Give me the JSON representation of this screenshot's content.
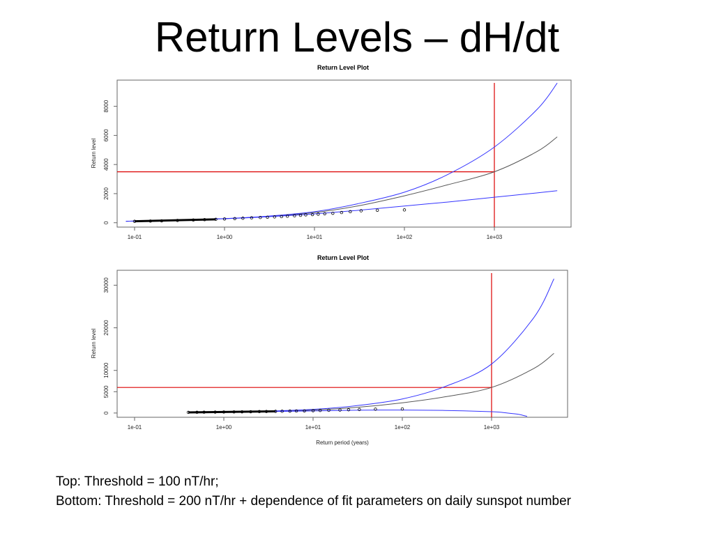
{
  "slide": {
    "title": "Return Levels – dH/dt",
    "caption_line1": "Top: Threshold = 100 nT/hr;",
    "caption_line2": "Bottom: Threshold = 200 nT/hr + dependence of fit parameters on daily sunspot number"
  },
  "colors": {
    "estimate": "#555555",
    "confidence_band": "#3333ff",
    "reference_line": "#dd0000",
    "points": "#000000"
  },
  "chart_data": [
    {
      "type": "line",
      "title": "Return Level Plot",
      "xlabel": "",
      "ylabel": "Return level",
      "x_scale": "log",
      "xlim": [
        0.06,
        8000
      ],
      "ylim": [
        -300,
        9800
      ],
      "x_ticks": [
        0.1,
        1,
        10,
        100,
        1000
      ],
      "x_tick_labels": [
        "1e-01",
        "1e+00",
        "1e+01",
        "1e+02",
        "1e+03"
      ],
      "y_ticks": [
        0,
        2000,
        4000,
        6000,
        8000
      ],
      "y_tick_labels": [
        "0",
        "2000",
        "4000",
        "6000",
        "8000"
      ],
      "reference": {
        "x": 1000,
        "y": 3500
      },
      "series": [
        {
          "role": "estimate",
          "x": [
            0.08,
            0.3,
            1,
            3,
            10,
            30,
            100,
            300,
            1000,
            3000,
            5000
          ],
          "y": [
            100,
            180,
            280,
            430,
            700,
            1150,
            1850,
            2600,
            3500,
            4900,
            5900
          ]
        },
        {
          "role": "upper",
          "x": [
            0.08,
            0.3,
            1,
            3,
            10,
            30,
            100,
            300,
            1000,
            3000,
            5000
          ],
          "y": [
            100,
            180,
            285,
            450,
            760,
            1300,
            2100,
            3300,
            5200,
            7800,
            9600
          ]
        },
        {
          "role": "lower",
          "x": [
            0.08,
            0.3,
            1,
            3,
            10,
            30,
            100,
            300,
            1000,
            3000,
            5000
          ],
          "y": [
            100,
            178,
            275,
            410,
            610,
            850,
            1150,
            1420,
            1750,
            2050,
            2200
          ]
        }
      ],
      "points": {
        "x": [
          0.1,
          0.15,
          0.2,
          0.3,
          0.45,
          0.6,
          0.8,
          1.0,
          1.3,
          1.6,
          2.0,
          2.5,
          3.0,
          3.6,
          4.3,
          5.0,
          6.0,
          7.0,
          8.0,
          9.5,
          11,
          13,
          16,
          20,
          25,
          33,
          50,
          100
        ],
        "y": [
          100,
          115,
          130,
          160,
          185,
          210,
          235,
          260,
          285,
          310,
          335,
          360,
          380,
          400,
          420,
          450,
          480,
          510,
          540,
          560,
          590,
          620,
          650,
          700,
          760,
          820,
          860,
          880
        ]
      }
    },
    {
      "type": "line",
      "title": "Return Level Plot",
      "xlabel": "Return period (years)",
      "ylabel": "Return level",
      "x_scale": "log",
      "xlim": [
        0.06,
        8000
      ],
      "ylim": [
        -1000,
        33500
      ],
      "x_ticks": [
        0.1,
        1,
        10,
        100,
        1000
      ],
      "x_tick_labels": [
        "1e-01",
        "1e+00",
        "1e+01",
        "1e+02",
        "1e+03"
      ],
      "y_ticks": [
        0,
        5000,
        10000,
        20000,
        30000
      ],
      "y_tick_labels": [
        "0",
        "5000",
        "10000",
        "20000",
        "30000"
      ],
      "reference": {
        "x": 1000,
        "y": 6000
      },
      "series": [
        {
          "role": "estimate",
          "x": [
            0.4,
            1,
            3,
            10,
            30,
            100,
            300,
            1000,
            3000,
            5000
          ],
          "y": [
            150,
            220,
            380,
            700,
            1300,
            2400,
            3800,
            6000,
            10500,
            14000
          ]
        },
        {
          "role": "upper",
          "x": [
            0.4,
            1,
            3,
            10,
            30,
            100,
            300,
            1000,
            3000,
            5000
          ],
          "y": [
            150,
            230,
            430,
            850,
            1700,
            3300,
            6200,
            11500,
            22500,
            31500
          ]
        },
        {
          "role": "lower",
          "x": [
            0.4,
            1,
            3,
            10,
            30,
            100,
            300,
            1000,
            1500,
            2000,
            2500
          ],
          "y": [
            150,
            210,
            330,
            500,
            650,
            700,
            600,
            300,
            0,
            -300,
            -800
          ]
        }
      ],
      "points": {
        "x": [
          0.4,
          0.5,
          0.6,
          0.8,
          1.0,
          1.3,
          1.6,
          2.0,
          2.5,
          3.0,
          3.8,
          4.5,
          5.5,
          6.5,
          8.0,
          10,
          12,
          15,
          20,
          25,
          33,
          50,
          100
        ],
        "y": [
          150,
          170,
          190,
          210,
          230,
          250,
          280,
          300,
          330,
          360,
          390,
          420,
          450,
          480,
          510,
          550,
          600,
          640,
          700,
          760,
          820,
          900,
          950
        ]
      }
    }
  ]
}
